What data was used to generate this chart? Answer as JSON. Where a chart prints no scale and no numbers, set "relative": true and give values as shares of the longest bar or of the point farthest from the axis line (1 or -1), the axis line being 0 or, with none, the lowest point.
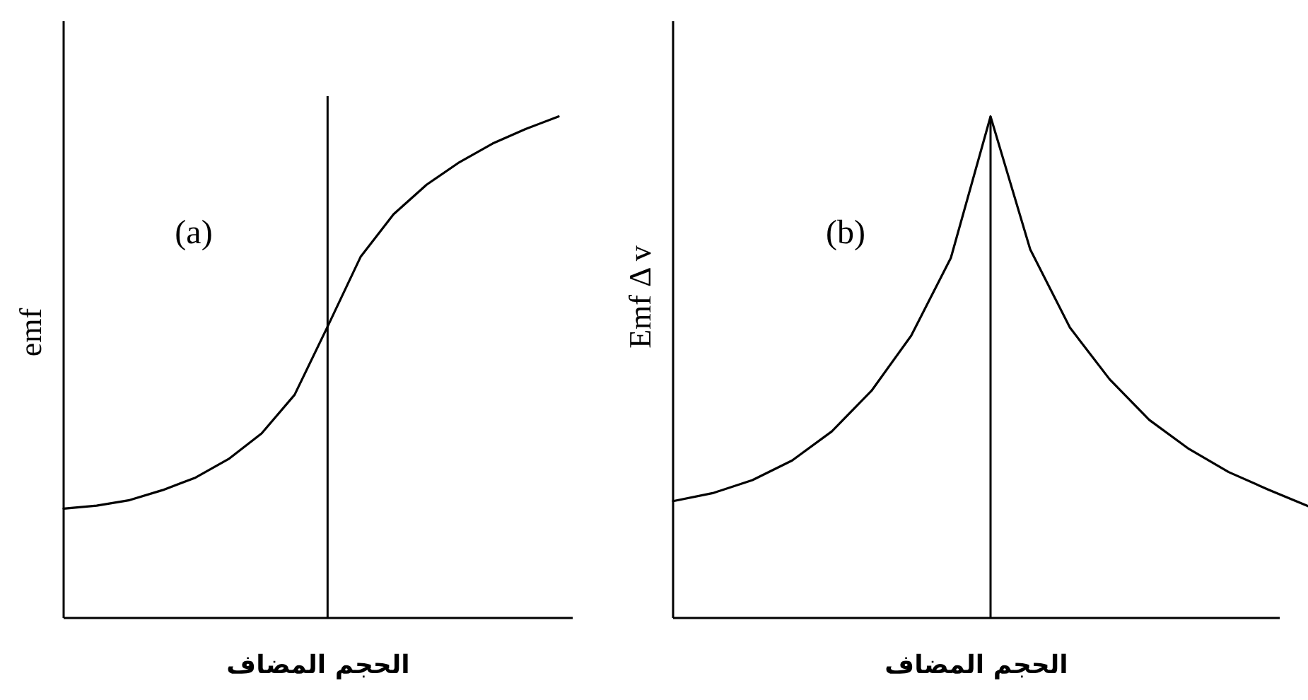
{
  "chart_data": [
    {
      "type": "line",
      "relative": true,
      "ylabel": "emf",
      "xlabel": "الحجم المضاف",
      "annotations": [
        "(a)"
      ],
      "categories": [
        null,
        null,
        null,
        null,
        null,
        null,
        null,
        null,
        null,
        null,
        null,
        null,
        null,
        null,
        null,
        null
      ],
      "series": [
        {
          "color": "#000000",
          "values": [
            0.218,
            0.224,
            0.235,
            0.255,
            0.28,
            0.317,
            0.368,
            0.445,
            0.581,
            0.72,
            0.805,
            0.864,
            0.909,
            0.946,
            0.975,
            1
          ]
        }
      ]
    },
    {
      "type": "line",
      "relative": true,
      "ylabel": "Emf Δ v",
      "xlabel": "الحجم المضاف",
      "annotations": [
        "(b)"
      ],
      "categories": [
        null,
        null,
        null,
        null,
        null,
        null,
        null,
        null,
        null,
        null,
        null,
        null,
        null,
        null,
        null,
        null,
        null
      ],
      "series": [
        {
          "color": "#000000",
          "values": [
            0.233,
            0.249,
            0.275,
            0.314,
            0.372,
            0.453,
            0.563,
            0.718,
            1,
            0.735,
            0.579,
            0.476,
            0.395,
            0.337,
            0.291,
            0.256,
            0.223
          ]
        }
      ]
    }
  ]
}
